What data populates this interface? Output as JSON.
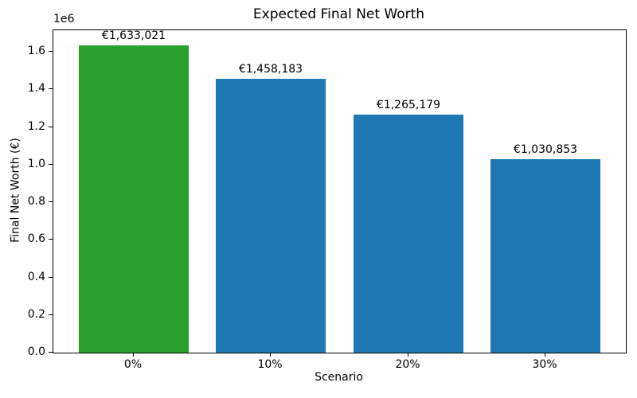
{
  "chart_data": {
    "type": "bar",
    "title": "Expected Final Net Worth",
    "xlabel": "Scenario",
    "ylabel": "Final Net Worth (€)",
    "categories": [
      "0%",
      "10%",
      "20%",
      "30%"
    ],
    "values": [
      1633021,
      1458183,
      1265179,
      1030853
    ],
    "bar_labels": [
      "€1,633,021",
      "€1,458,183",
      "€1,265,179",
      "€1,030,853"
    ],
    "bar_colors": [
      "#2ca02c",
      "#1f77b4",
      "#1f77b4",
      "#1f77b4"
    ],
    "highlight_color": "#2ca02c",
    "default_bar_color": "#1f77b4",
    "text_color": "#000000",
    "ylim": [
      0,
      1714672
    ],
    "yticks": [
      {
        "value": 0,
        "label": "0.0"
      },
      {
        "value": 200000,
        "label": "0.2"
      },
      {
        "value": 400000,
        "label": "0.4"
      },
      {
        "value": 600000,
        "label": "0.6"
      },
      {
        "value": 800000,
        "label": "0.8"
      },
      {
        "value": 1000000,
        "label": "1.0"
      },
      {
        "value": 1200000,
        "label": "1.2"
      },
      {
        "value": 1400000,
        "label": "1.4"
      },
      {
        "value": 1600000,
        "label": "1.6"
      }
    ],
    "ytick_scale_label": "1e6",
    "grid": false,
    "legend": null
  }
}
